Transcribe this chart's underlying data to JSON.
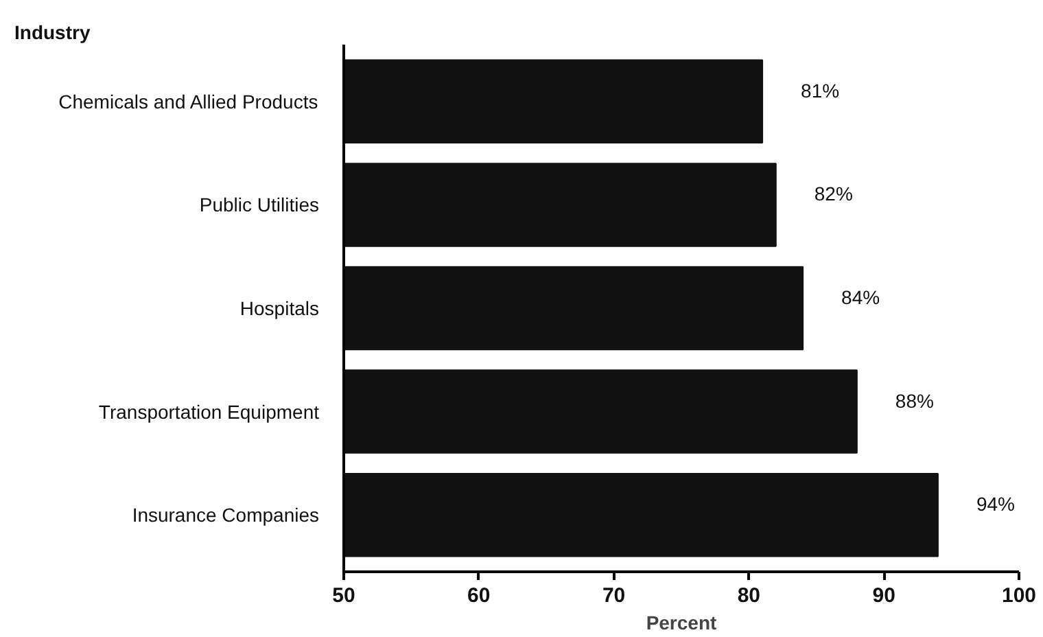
{
  "chart_data": {
    "type": "bar",
    "orientation": "horizontal",
    "ylabel": "Industry",
    "xlabel": "Percent",
    "categories": [
      "Chemicals and Allied Products",
      "Public Utilities",
      "Hospitals",
      "Transportation Equipment",
      "Insurance Companies"
    ],
    "values": [
      81,
      82,
      84,
      88,
      94
    ],
    "value_labels": [
      "81%",
      "82%",
      "84%",
      "88%",
      "94%"
    ],
    "color": "#111111",
    "xlim": [
      50,
      100
    ],
    "xticks": [
      50,
      60,
      70,
      80,
      90,
      100
    ],
    "grid": false
  }
}
